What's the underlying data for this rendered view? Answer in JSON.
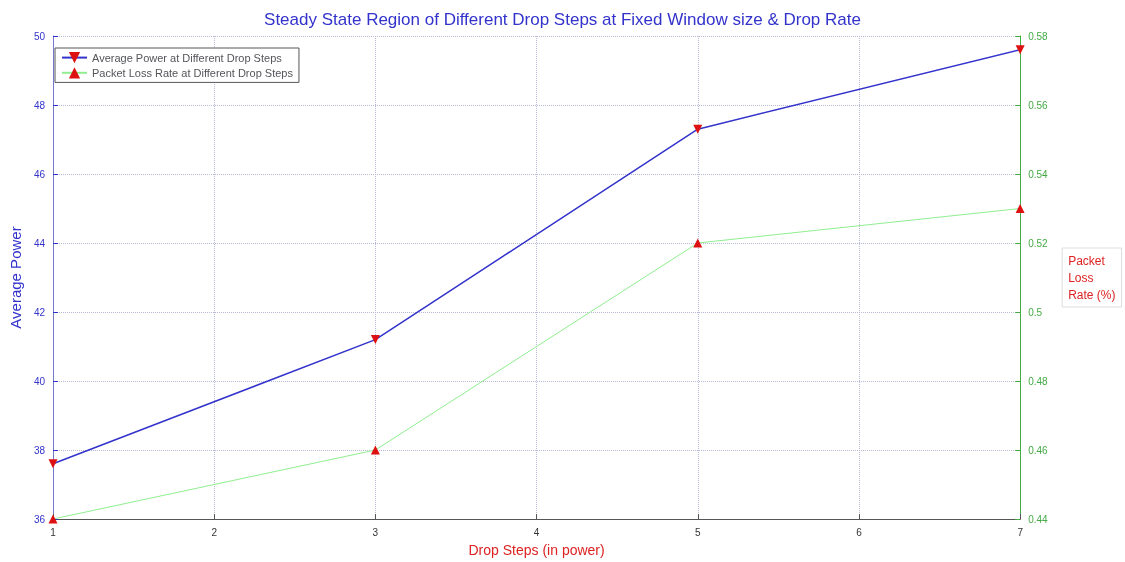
{
  "chart_data": {
    "type": "line",
    "title": "Steady State Region of Different Drop Steps at Fixed Window size & Drop Rate",
    "xlabel": "Drop Steps (in power)",
    "ylabel": "Average Power",
    "y2label": "Packet\nLoss\nRate (%)",
    "x": [
      1,
      3,
      5,
      7
    ],
    "series": [
      {
        "name": "Average Power at Different Drop Steps",
        "color": "#3333cc",
        "values": [
          37.6,
          41.2,
          47.3,
          49.6
        ],
        "marker": "triangle-down"
      },
      {
        "name": "Packet Loss Rate at Different Drop Steps",
        "color": "#90ee90",
        "values": [
          0.44,
          0.46,
          0.52,
          0.53
        ],
        "axis": "y2",
        "marker": "triangle"
      }
    ],
    "xlim": [
      1,
      7
    ],
    "xticks": [
      1,
      2,
      3,
      4,
      5,
      6,
      7
    ],
    "ylim": [
      36,
      50
    ],
    "yticks": [
      36,
      38,
      40,
      42,
      44,
      46,
      48,
      50
    ],
    "y2lim": [
      0.44,
      0.58
    ],
    "y2ticks": [
      0.44,
      0.46,
      0.48,
      0.5,
      0.52,
      0.54,
      0.56,
      0.58
    ],
    "grid": true,
    "legend": "top left",
    "line_style": "solid"
  }
}
